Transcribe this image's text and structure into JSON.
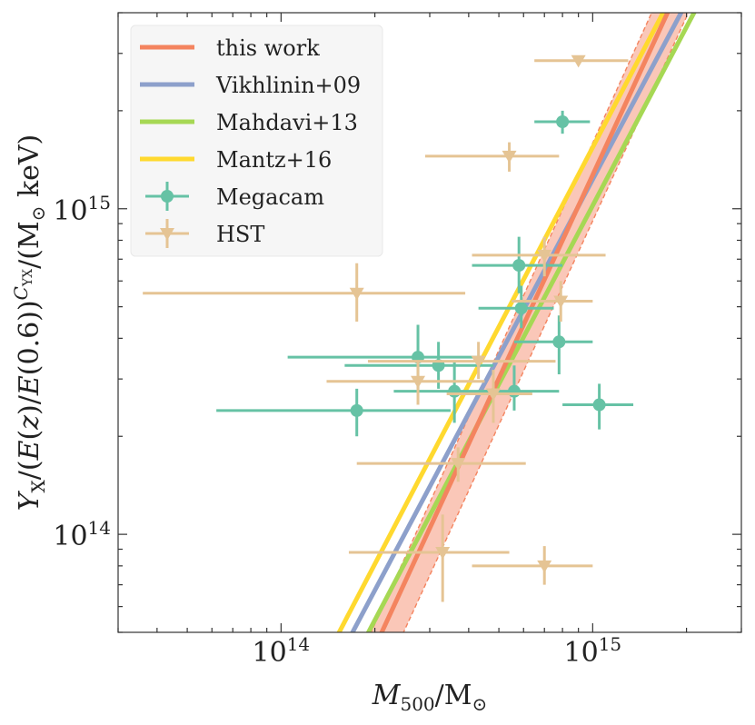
{
  "chart_data": {
    "type": "scatter",
    "xscale": "log",
    "yscale": "log",
    "xlim": [
      30000000000000.0,
      3000000000000000.0
    ],
    "ylim": [
      50000000000000.0,
      4000000000000000.0
    ],
    "xlabel": "M_500 / M_⊙",
    "ylabel": "Y_X / (E(z)/E(0.6))^{C_YX} / (M_⊙ keV)",
    "xticks": [
      {
        "value": 100000000000000.0,
        "base": "10",
        "exp": "14"
      },
      {
        "value": 1000000000000000.0,
        "base": "10",
        "exp": "15"
      }
    ],
    "yticks": [
      {
        "value": 100000000000000.0,
        "base": "10",
        "exp": "14"
      },
      {
        "value": 1000000000000000.0,
        "base": "10",
        "exp": "15"
      }
    ],
    "grid": false,
    "legend_position": "top-left",
    "colors": {
      "this_work": "#F4845F",
      "vikhlinin": "#8DA0CB",
      "mahdavi": "#A6D854",
      "mantz": "#FFD92F",
      "megacam": "#66C2A5",
      "hst": "#E5C494",
      "band": "#F8B4A0"
    },
    "lines": [
      {
        "key": "this_work",
        "name": "this work",
        "x": [
          200000000000000.0,
          1800000000000000.0
        ],
        "y": [
          45000000000000.0,
          4300000000000000.0
        ]
      },
      {
        "key": "vikhlinin",
        "name": "Vikhlinin+09",
        "x": [
          160000000000000.0,
          2000000000000000.0
        ],
        "y": [
          45000000000000.0,
          4300000000000000.0
        ]
      },
      {
        "key": "mahdavi",
        "name": "Mahdavi+13",
        "x": [
          180000000000000.0,
          2200000000000000.0
        ],
        "y": [
          45000000000000.0,
          4300000000000000.0
        ]
      },
      {
        "key": "mantz",
        "name": "Mantz+16",
        "x": [
          145000000000000.0,
          1750000000000000.0
        ],
        "y": [
          45000000000000.0,
          4300000000000000.0
        ]
      }
    ],
    "band": {
      "name": "this work uncertainty",
      "upper_x": [
        185000000000000.0,
        1600000000000000.0
      ],
      "lower_x": [
        235000000000000.0,
        2100000000000000.0
      ],
      "y": [
        45000000000000.0,
        4300000000000000.0
      ]
    },
    "series": [
      {
        "key": "megacam",
        "name": "Megacam",
        "marker": "circle",
        "points": [
          {
            "x": 800000000000000.0,
            "y": 1850000000000000.0,
            "xerr": [
              650000000000000.0,
              980000000000000.0
            ],
            "yerr": [
              1700000000000000.0,
              2000000000000000.0
            ]
          },
          {
            "x": 580000000000000.0,
            "y": 670000000000000.0,
            "xerr": [
              410000000000000.0,
              800000000000000.0
            ],
            "yerr": [
              550000000000000.0,
              820000000000000.0
            ]
          },
          {
            "x": 590000000000000.0,
            "y": 495000000000000.0,
            "xerr": [
              430000000000000.0,
              750000000000000.0
            ],
            "yerr": [
              430000000000000.0,
              580000000000000.0
            ]
          },
          {
            "x": 780000000000000.0,
            "y": 390000000000000.0,
            "xerr": [
              560000000000000.0,
              1000000000000000.0
            ],
            "yerr": [
              310000000000000.0,
              470000000000000.0
            ]
          },
          {
            "x": 275000000000000.0,
            "y": 350000000000000.0,
            "xerr": [
              105000000000000.0,
              440000000000000.0
            ],
            "yerr": [
              280000000000000.0,
              440000000000000.0
            ]
          },
          {
            "x": 320000000000000.0,
            "y": 330000000000000.0,
            "xerr": [
              160000000000000.0,
              480000000000000.0
            ],
            "yerr": [
              280000000000000.0,
              390000000000000.0
            ]
          },
          {
            "x": 360000000000000.0,
            "y": 275000000000000.0,
            "xerr": [
              230000000000000.0,
              500000000000000.0
            ],
            "yerr": [
              220000000000000.0,
              340000000000000.0
            ]
          },
          {
            "x": 560000000000000.0,
            "y": 275000000000000.0,
            "xerr": [
              430000000000000.0,
              780000000000000.0
            ],
            "yerr": [
              240000000000000.0,
              330000000000000.0
            ]
          },
          {
            "x": 175000000000000.0,
            "y": 240000000000000.0,
            "xerr": [
              62000000000000.0,
              350000000000000.0
            ],
            "yerr": [
              200000000000000.0,
              280000000000000.0
            ]
          },
          {
            "x": 1050000000000000.0,
            "y": 250000000000000.0,
            "xerr": [
              800000000000000.0,
              1350000000000000.0
            ],
            "yerr": [
              210000000000000.0,
              290000000000000.0
            ]
          }
        ]
      },
      {
        "key": "hst",
        "name": "HST",
        "marker": "triangle-down",
        "points": [
          {
            "x": 900000000000000.0,
            "y": 2850000000000000.0,
            "xerr": [
              650000000000000.0,
              1300000000000000.0
            ],
            "yerr": [
              2800000000000000.0,
              2900000000000000.0
            ]
          },
          {
            "x": 540000000000000.0,
            "y": 1450000000000000.0,
            "xerr": [
              290000000000000.0,
              780000000000000.0
            ],
            "yerr": [
              1300000000000000.0,
              1600000000000000.0
            ]
          },
          {
            "x": 700000000000000.0,
            "y": 720000000000000.0,
            "xerr": [
              410000000000000.0,
              1100000000000000.0
            ],
            "yerr": [
              620000000000000.0,
              820000000000000.0
            ]
          },
          {
            "x": 175000000000000.0,
            "y": 550000000000000.0,
            "xerr": [
              36000000000000.0,
              390000000000000.0
            ],
            "yerr": [
              450000000000000.0,
              680000000000000.0
            ]
          },
          {
            "x": 790000000000000.0,
            "y": 520000000000000.0,
            "xerr": [
              550000000000000.0,
              1000000000000000.0
            ],
            "yerr": [
              450000000000000.0,
              600000000000000.0
            ]
          },
          {
            "x": 430000000000000.0,
            "y": 340000000000000.0,
            "xerr": [
              190000000000000.0,
              760000000000000.0
            ],
            "yerr": [
              300000000000000.0,
              390000000000000.0
            ]
          },
          {
            "x": 275000000000000.0,
            "y": 295000000000000.0,
            "xerr": [
              140000000000000.0,
              450000000000000.0
            ],
            "yerr": [
              250000000000000.0,
              340000000000000.0
            ]
          },
          {
            "x": 480000000000000.0,
            "y": 270000000000000.0,
            "xerr": [
              340000000000000.0,
              640000000000000.0
            ],
            "yerr": [
              220000000000000.0,
              320000000000000.0
            ]
          },
          {
            "x": 370000000000000.0,
            "y": 165000000000000.0,
            "xerr": [
              175000000000000.0,
              610000000000000.0
            ],
            "yerr": [
              145000000000000.0,
              185000000000000.0
            ]
          },
          {
            "x": 330000000000000.0,
            "y": 88000000000000.0,
            "xerr": [
              165000000000000.0,
              540000000000000.0
            ],
            "yerr": [
              62000000000000.0,
              115000000000000.0
            ]
          },
          {
            "x": 700000000000000.0,
            "y": 80000000000000.0,
            "xerr": [
              410000000000000.0,
              1000000000000000.0
            ],
            "yerr": [
              70000000000000.0,
              92000000000000.0
            ]
          }
        ]
      }
    ],
    "legend": [
      {
        "key": "this_work",
        "label": "this work",
        "kind": "line"
      },
      {
        "key": "vikhlinin",
        "label": "Vikhlinin+09",
        "kind": "line"
      },
      {
        "key": "mahdavi",
        "label": "Mahdavi+13",
        "kind": "line"
      },
      {
        "key": "mantz",
        "label": "Mantz+16",
        "kind": "line"
      },
      {
        "key": "megacam",
        "label": "Megacam",
        "kind": "circle"
      },
      {
        "key": "hst",
        "label": "HST",
        "kind": "triangle-down"
      }
    ]
  }
}
